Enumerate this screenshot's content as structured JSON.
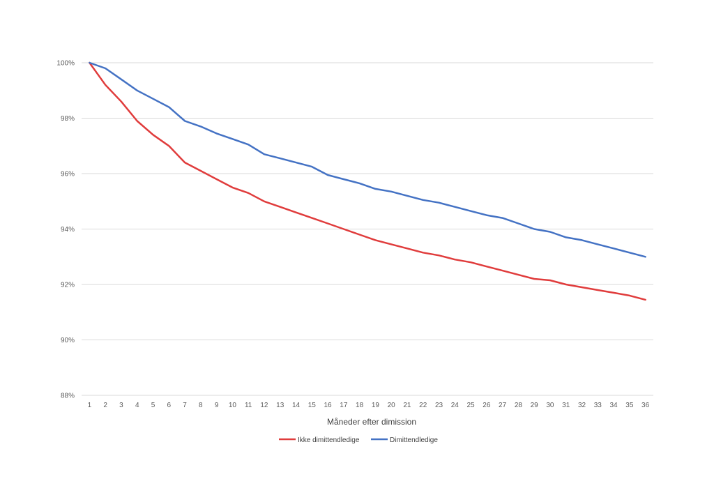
{
  "chart_data": {
    "type": "line",
    "title": "",
    "xlabel": "Måneder efter dimission",
    "ylabel": "",
    "x": [
      1,
      2,
      3,
      4,
      5,
      6,
      7,
      8,
      9,
      10,
      11,
      12,
      13,
      14,
      15,
      16,
      17,
      18,
      19,
      20,
      21,
      22,
      23,
      24,
      25,
      26,
      27,
      28,
      29,
      30,
      31,
      32,
      33,
      34,
      35,
      36
    ],
    "y_ticks": [
      "88%",
      "90%",
      "92%",
      "94%",
      "96%",
      "98%",
      "100%"
    ],
    "y_tick_values": [
      88,
      90,
      92,
      94,
      96,
      98,
      100
    ],
    "ylim": [
      88,
      100
    ],
    "grid": "horizontal",
    "legend_position": "bottom",
    "series": [
      {
        "name": "Ikke dimittendledige",
        "color": "#e03c3c",
        "values": [
          100,
          99.2,
          98.6,
          97.9,
          97.4,
          97.0,
          96.4,
          96.1,
          95.8,
          95.5,
          95.3,
          95.0,
          94.8,
          94.6,
          94.4,
          94.2,
          94.0,
          93.8,
          93.6,
          93.45,
          93.3,
          93.15,
          93.05,
          92.9,
          92.8,
          92.65,
          92.5,
          92.35,
          92.2,
          92.15,
          92.0,
          91.9,
          91.8,
          91.7,
          91.6,
          91.45
        ]
      },
      {
        "name": "Dimittendledige",
        "color": "#4472c4",
        "values": [
          100,
          99.8,
          99.4,
          99.0,
          98.7,
          98.4,
          97.9,
          97.7,
          97.45,
          97.25,
          97.05,
          96.7,
          96.55,
          96.4,
          96.25,
          95.95,
          95.8,
          95.65,
          95.45,
          95.35,
          95.2,
          95.05,
          94.95,
          94.8,
          94.65,
          94.5,
          94.4,
          94.2,
          94.0,
          93.9,
          93.7,
          93.6,
          93.45,
          93.3,
          93.15,
          93.0
        ]
      }
    ]
  }
}
